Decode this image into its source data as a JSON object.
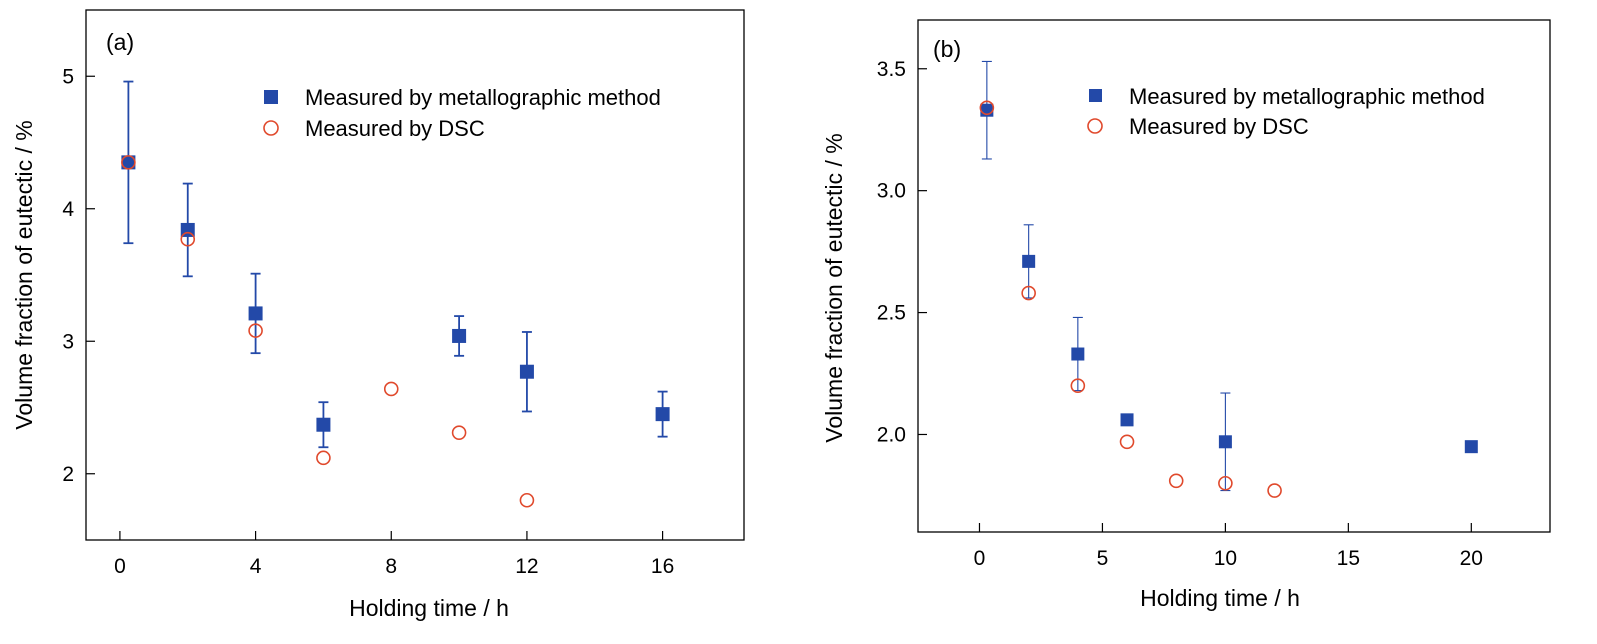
{
  "colors": {
    "metallographic": "#2349a8",
    "dsc": "#e0492c"
  },
  "chart_data": [
    {
      "type": "scatter",
      "panel_label": "(a)",
      "xlabel": "Holding time / h",
      "ylabel": "Volume fraction of eutectic / %",
      "xlim": [
        -1,
        18.4
      ],
      "ylim": [
        1.5,
        5.5
      ],
      "xticks": [
        0,
        4,
        8,
        12,
        16
      ],
      "yticks": [
        2,
        3,
        4,
        5
      ],
      "grid": false,
      "legend_position": "top-right",
      "series": [
        {
          "name": "Measured by metallographic method",
          "marker": "filled-square",
          "points": [
            {
              "x": 0.25,
              "y": 4.35,
              "err_low": 3.74,
              "err_high": 4.96
            },
            {
              "x": 2,
              "y": 3.84,
              "err_low": 3.49,
              "err_high": 4.19
            },
            {
              "x": 4,
              "y": 3.21,
              "err_low": 2.91,
              "err_high": 3.51
            },
            {
              "x": 6,
              "y": 2.37,
              "err_low": 2.2,
              "err_high": 2.54
            },
            {
              "x": 10,
              "y": 3.04,
              "err_low": 2.89,
              "err_high": 3.19
            },
            {
              "x": 12,
              "y": 2.77,
              "err_low": 2.47,
              "err_high": 3.07
            },
            {
              "x": 16,
              "y": 2.45,
              "err_low": 2.28,
              "err_high": 2.62
            }
          ]
        },
        {
          "name": "Measured by DSC",
          "marker": "open-circle",
          "points": [
            {
              "x": 0.25,
              "y": 4.35
            },
            {
              "x": 2,
              "y": 3.77
            },
            {
              "x": 4,
              "y": 3.08
            },
            {
              "x": 6,
              "y": 2.12
            },
            {
              "x": 8,
              "y": 2.64
            },
            {
              "x": 10,
              "y": 2.31
            },
            {
              "x": 12,
              "y": 1.8
            }
          ]
        }
      ]
    },
    {
      "type": "scatter",
      "panel_label": "(b)",
      "xlabel": "Holding time / h",
      "ylabel": "Volume fraction of eutectic / %",
      "xlim": [
        -2.5,
        23.2
      ],
      "ylim": [
        1.6,
        3.7
      ],
      "xticks": [
        0,
        5,
        10,
        15,
        20
      ],
      "yticks": [
        2.0,
        2.5,
        3.0,
        3.5
      ],
      "ytick_labels": [
        "2.0",
        "2.5",
        "3.0",
        "3.5"
      ],
      "grid": false,
      "legend_position": "top-right",
      "series": [
        {
          "name": "Measured by metallographic method",
          "marker": "filled-square",
          "points": [
            {
              "x": 0.3,
              "y": 3.33,
              "err_low": 3.13,
              "err_high": 3.53
            },
            {
              "x": 2,
              "y": 2.71,
              "err_low": 2.56,
              "err_high": 2.86
            },
            {
              "x": 4,
              "y": 2.33,
              "err_low": 2.18,
              "err_high": 2.48
            },
            {
              "x": 6,
              "y": 2.06
            },
            {
              "x": 10,
              "y": 1.97,
              "err_low": 1.77,
              "err_high": 2.17
            },
            {
              "x": 20,
              "y": 1.95
            }
          ]
        },
        {
          "name": "Measured by DSC",
          "marker": "open-circle",
          "points": [
            {
              "x": 0.3,
              "y": 3.34
            },
            {
              "x": 2,
              "y": 2.58
            },
            {
              "x": 4,
              "y": 2.2
            },
            {
              "x": 6,
              "y": 1.97
            },
            {
              "x": 8,
              "y": 1.81
            },
            {
              "x": 10,
              "y": 1.8
            },
            {
              "x": 12,
              "y": 1.77
            }
          ]
        }
      ]
    }
  ]
}
